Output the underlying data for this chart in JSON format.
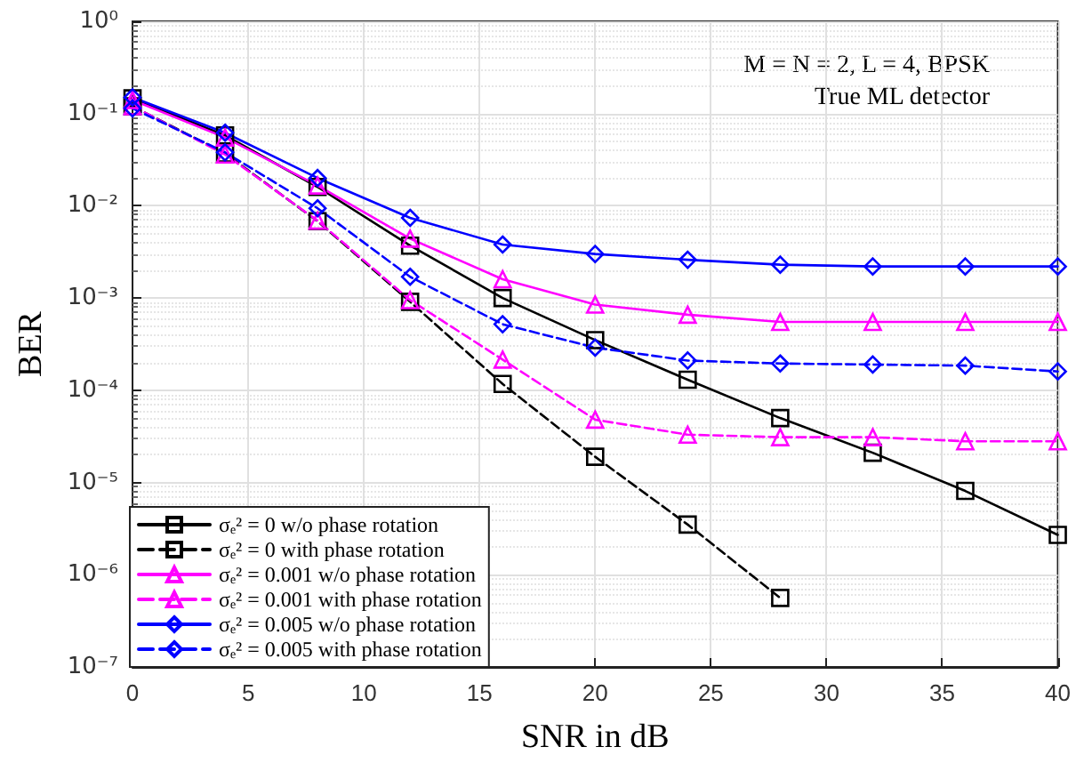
{
  "chart_data": {
    "type": "line",
    "xlabel": "SNR in dB",
    "ylabel": "BER",
    "x": [
      0,
      4,
      8,
      12,
      16,
      20,
      24,
      28,
      32,
      36,
      40
    ],
    "xlim": [
      0,
      40
    ],
    "xticks": [
      0,
      5,
      10,
      15,
      20,
      25,
      30,
      35,
      40
    ],
    "ylim": [
      1e-07,
      1
    ],
    "log": "y",
    "yticks": [
      {
        "value": 1e-07,
        "label": "10⁻⁷"
      },
      {
        "value": 1e-06,
        "label": "10⁻⁶"
      },
      {
        "value": 1e-05,
        "label": "10⁻⁵"
      },
      {
        "value": 0.0001,
        "label": "10⁻⁴"
      },
      {
        "value": 0.001,
        "label": "10⁻³"
      },
      {
        "value": 0.01,
        "label": "10⁻²"
      },
      {
        "value": 0.1,
        "label": "10⁻¹"
      },
      {
        "value": 1,
        "label": "10⁰"
      }
    ],
    "grid": true,
    "legend": "bottom left",
    "annotations": [
      "M = N = 2, L = 4, BPSK",
      "True ML detector"
    ],
    "series": [
      {
        "name": "σₑ² = 0 w/o phase rotation",
        "color": "#000000",
        "marker": "square",
        "line_style": "solid",
        "values": [
          0.146,
          0.058,
          0.016,
          0.0037,
          0.001,
          0.00035,
          0.00013,
          5e-05,
          2.1e-05,
          8.1e-06,
          2.7e-06
        ]
      },
      {
        "name": "σₑ² = 0 with phase rotation",
        "color": "#000000",
        "marker": "square",
        "line_style": "dashed",
        "values": [
          0.12,
          0.037,
          0.0068,
          0.00091,
          0.000117,
          1.9e-05,
          3.5e-06,
          5.6e-07,
          null,
          null,
          null
        ]
      },
      {
        "name": "σₑ² = 0.001 w/o phase rotation",
        "color": "#ff00ff",
        "marker": "triangle",
        "line_style": "solid",
        "values": [
          0.14,
          0.055,
          0.0166,
          0.0044,
          0.0016,
          0.00085,
          0.00066,
          0.00055,
          0.00055,
          0.00055,
          0.00055
        ]
      },
      {
        "name": "σₑ² = 0.001 with phase rotation",
        "color": "#ff00ff",
        "marker": "triangle",
        "line_style": "dashed",
        "values": [
          0.12,
          0.036,
          0.0069,
          0.00095,
          0.000215,
          4.8e-05,
          3.3e-05,
          3.1e-05,
          3.1e-05,
          2.8e-05,
          2.8e-05
        ]
      },
      {
        "name": "σₑ² = 0.005 w/o phase rotation",
        "color": "#0000ff",
        "marker": "diamond",
        "line_style": "solid",
        "values": [
          0.15,
          0.062,
          0.02,
          0.0074,
          0.0038,
          0.003,
          0.0026,
          0.0023,
          0.0022,
          0.0022,
          0.0022
        ]
      },
      {
        "name": "σₑ² = 0.005 with phase rotation",
        "color": "#0000ff",
        "marker": "diamond",
        "line_style": "dashed",
        "values": [
          0.114,
          0.038,
          0.0094,
          0.0017,
          0.00052,
          0.00029,
          0.00021,
          0.000195,
          0.00019,
          0.000185,
          0.00016
        ]
      }
    ]
  }
}
